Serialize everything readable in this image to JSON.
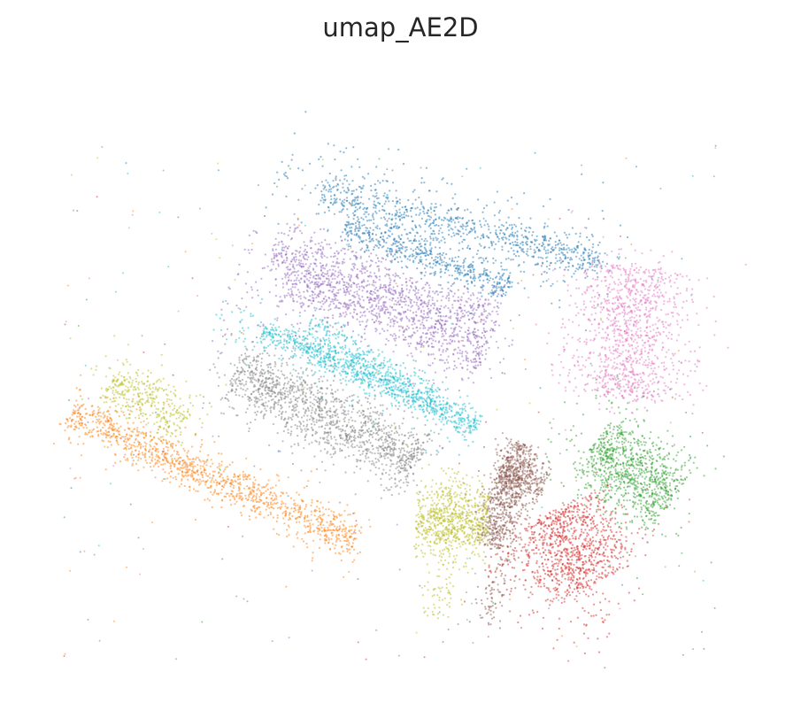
{
  "chart_data": {
    "type": "scatter",
    "title": "umap_AE2D",
    "xlabel": "",
    "ylabel": "",
    "axes_visible": false,
    "grid": false,
    "legend": "none",
    "xlim": [
      0,
      100
    ],
    "ylim": [
      0,
      100
    ],
    "point_alpha": 0.5,
    "series": [
      {
        "color": "#1f77b4",
        "clusters": [
          {
            "x0": 41.3,
            "y0": 81.0,
            "x1": 77.6,
            "y1": 70.4,
            "halfwidth": 2.6,
            "n": 750
          },
          {
            "x0": 44.1,
            "y0": 75.5,
            "x1": 65.3,
            "y1": 66.4,
            "halfwidth": 2.3,
            "n": 550
          },
          {
            "x0": 35.6,
            "y0": 84.7,
            "x1": 79.0,
            "y1": 67.8,
            "halfwidth": 7.3,
            "n": 230
          }
        ]
      },
      {
        "color": "#ff7f0e",
        "clusters": [
          {
            "x0": 6.3,
            "y0": 44.3,
            "x1": 43.3,
            "y1": 24.7,
            "halfwidth": 2.5,
            "n": 1050
          },
          {
            "x0": 5.6,
            "y0": 45.1,
            "x1": 44.1,
            "y1": 23.8,
            "halfwidth": 4.6,
            "n": 200
          }
        ]
      },
      {
        "color": "#2ca02c",
        "clusters": [
          {
            "x0": 78.3,
            "y0": 39.6,
            "x1": 88.3,
            "y1": 30.9,
            "halfwidth": 5.2,
            "n": 900
          },
          {
            "x0": 73.0,
            "y0": 44.3,
            "x1": 90.0,
            "y1": 27.0,
            "halfwidth": 9.0,
            "n": 120
          }
        ]
      },
      {
        "color": "#d62728",
        "clusters": [
          {
            "x0": 72.8,
            "y0": 28.6,
            "x1": 77.6,
            "y1": 17.2,
            "halfwidth": 6.7,
            "n": 900
          },
          {
            "x0": 65.3,
            "y0": 22.6,
            "x1": 80.4,
            "y1": 10.2,
            "halfwidth": 5.9,
            "n": 140
          }
        ]
      },
      {
        "color": "#9467bd",
        "clusters": [
          {
            "x0": 35.6,
            "y0": 67.0,
            "x1": 61.9,
            "y1": 55.5,
            "halfwidth": 3.3,
            "n": 800
          },
          {
            "x0": 34.3,
            "y0": 71.9,
            "x1": 63.4,
            "y1": 60.5,
            "halfwidth": 3.2,
            "n": 700
          },
          {
            "x0": 28.8,
            "y0": 68.0,
            "x1": 64.1,
            "y1": 53.0,
            "halfwidth": 8.3,
            "n": 200
          }
        ]
      },
      {
        "color": "#8c564b",
        "clusters": [
          {
            "x0": 67.4,
            "y0": 39.6,
            "x1": 63.9,
            "y1": 23.5,
            "halfwidth": 2.8,
            "n": 700
          },
          {
            "x0": 64.8,
            "y0": 34.8,
            "x1": 70.7,
            "y1": 32.6,
            "halfwidth": 3.1,
            "n": 300
          },
          {
            "x0": 65.3,
            "y0": 21.1,
            "x1": 63.1,
            "y1": 10.3,
            "halfwidth": 2.3,
            "n": 90
          }
        ]
      },
      {
        "color": "#e377c2",
        "clusters": [
          {
            "x0": 84.1,
            "y0": 68.3,
            "x1": 81.8,
            "y1": 48.2,
            "halfwidth": 6.6,
            "n": 1000
          },
          {
            "x0": 80.2,
            "y0": 70.9,
            "x1": 86.9,
            "y1": 47.1,
            "halfwidth": 9.5,
            "n": 160
          }
        ]
      },
      {
        "color": "#7f7f7f",
        "clusters": [
          {
            "x0": 28.8,
            "y0": 51.6,
            "x1": 52.5,
            "y1": 37.4,
            "halfwidth": 4.2,
            "n": 1250
          },
          {
            "x0": 26.0,
            "y0": 53.5,
            "x1": 54.0,
            "y1": 36.0,
            "halfwidth": 7.0,
            "n": 180
          }
        ]
      },
      {
        "color": "#bcbd22",
        "clusters": [
          {
            "x0": 53.5,
            "y0": 27.5,
            "x1": 62.9,
            "y1": 27.0,
            "halfwidth": 4.3,
            "n": 650
          },
          {
            "x0": 58.4,
            "y0": 35.2,
            "x1": 56.4,
            "y1": 11.9,
            "halfwidth": 2.3,
            "n": 170
          },
          {
            "x0": 10.8,
            "y0": 50.3,
            "x1": 20.6,
            "y1": 43.7,
            "halfwidth": 3.1,
            "n": 320
          },
          {
            "x0": 8.6,
            "y0": 53.7,
            "x1": 21.5,
            "y1": 41.4,
            "halfwidth": 5.8,
            "n": 80
          }
        ]
      },
      {
        "color": "#17becf",
        "clusters": [
          {
            "x0": 33.0,
            "y0": 58.2,
            "x1": 60.5,
            "y1": 43.4,
            "halfwidth": 1.7,
            "n": 800
          },
          {
            "x0": 38.5,
            "y0": 58.9,
            "x1": 55.2,
            "y1": 48.0,
            "halfwidth": 2.0,
            "n": 350
          },
          {
            "x0": 26.0,
            "y0": 60.6,
            "x1": 60.5,
            "y1": 42.7,
            "halfwidth": 4.1,
            "n": 120
          }
        ]
      }
    ],
    "background_noise": {
      "xlim": [
        4,
        95
      ],
      "ylim": [
        3,
        90
      ],
      "n_per_series": 35
    }
  }
}
